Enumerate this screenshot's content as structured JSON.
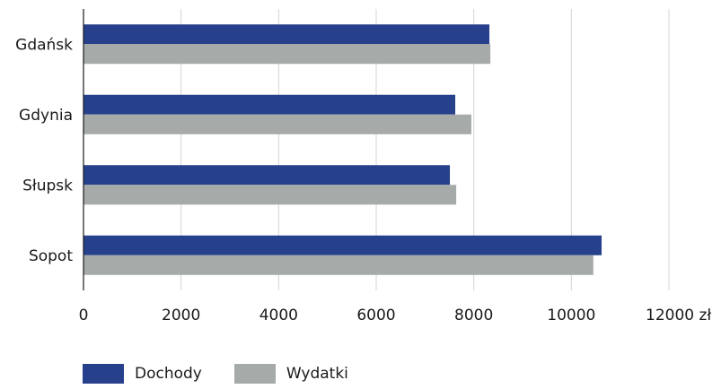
{
  "chart_data": {
    "type": "bar",
    "orientation": "horizontal",
    "categories": [
      "Gdańsk",
      "Gdynia",
      "Słupsk",
      "Sopot"
    ],
    "series": [
      {
        "name": "Dochody",
        "color": "#27408b",
        "values": [
          8320,
          7620,
          7510,
          10620
        ]
      },
      {
        "name": "Wydatki",
        "color": "#a6aaa8",
        "values": [
          8340,
          7950,
          7640,
          10450
        ]
      }
    ],
    "x_ticks": [
      "0",
      "2000",
      "4000",
      "6000",
      "8000",
      "10000",
      "12000 zł"
    ],
    "xlim": [
      0,
      12000
    ],
    "grid": true,
    "legend_position": "bottom-left"
  }
}
